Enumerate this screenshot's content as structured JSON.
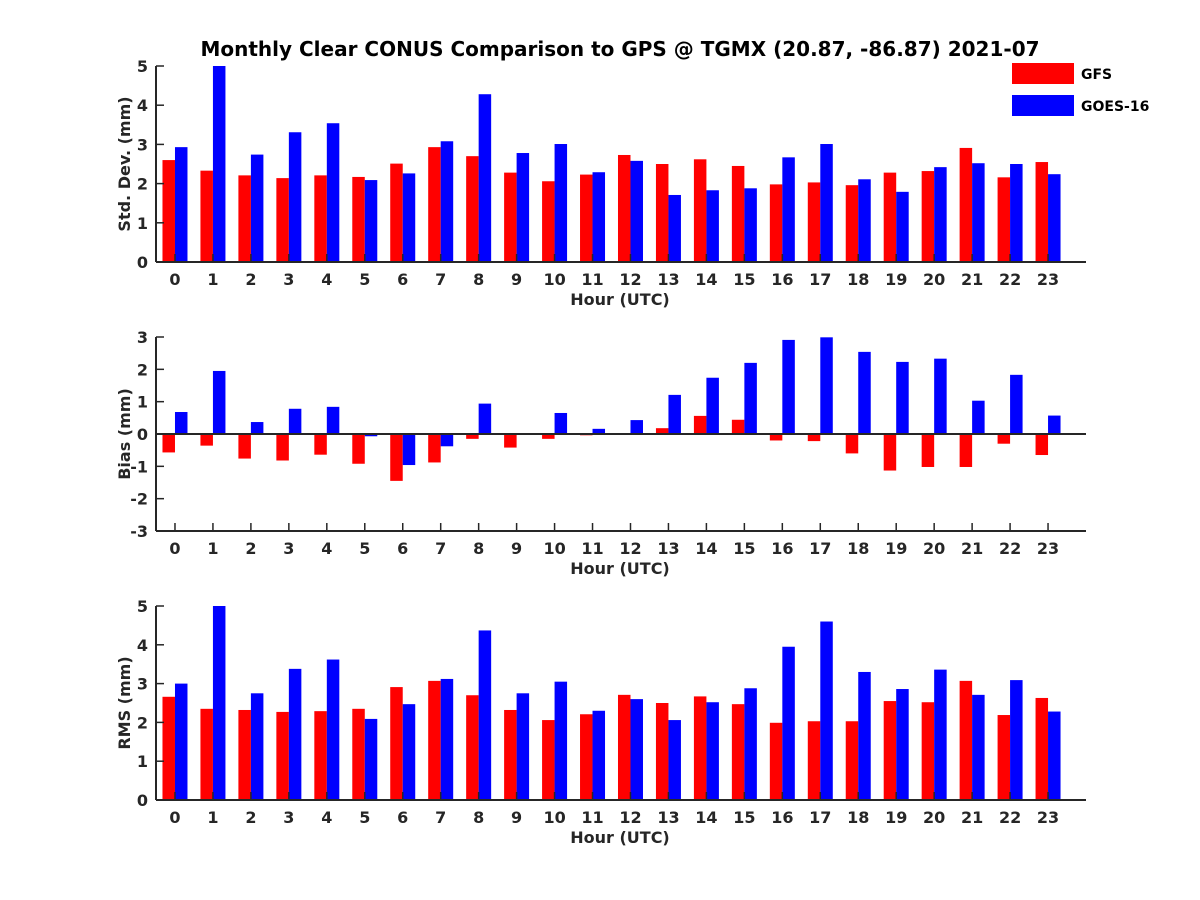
{
  "chart_data": {
    "title": "Monthly Clear CONUS Comparison to GPS @ TGMX (20.87, -86.87) 2021-07",
    "legend": {
      "placement": "top-right",
      "entries": [
        {
          "name": "GFS",
          "color": "#ff0000"
        },
        {
          "name": "GOES-16",
          "color": "#0000ff"
        }
      ]
    },
    "panels": [
      {
        "type": "bar",
        "ylabel": "Std. Dev. (mm)",
        "xlabel": "Hour (UTC)",
        "ylim": [
          0,
          5
        ],
        "yticks": [
          0,
          1,
          2,
          3,
          4,
          5
        ],
        "categories": [
          "0",
          "1",
          "2",
          "3",
          "4",
          "5",
          "6",
          "7",
          "8",
          "9",
          "10",
          "11",
          "12",
          "13",
          "14",
          "15",
          "16",
          "17",
          "18",
          "19",
          "20",
          "21",
          "22",
          "23"
        ],
        "series": [
          {
            "name": "GFS",
            "values": [
              2.6,
              2.33,
              2.21,
              2.14,
              2.21,
              2.17,
              2.51,
              2.93,
              2.7,
              2.28,
              2.06,
              2.23,
              2.73,
              2.5,
              2.62,
              2.45,
              1.98,
              2.03,
              1.96,
              2.28,
              2.32,
              2.91,
              2.16,
              2.55
            ]
          },
          {
            "name": "GOES-16",
            "values": [
              2.93,
              5.0,
              2.74,
              3.31,
              3.54,
              2.09,
              2.26,
              3.08,
              4.28,
              2.78,
              3.01,
              2.29,
              2.58,
              1.71,
              1.83,
              1.88,
              2.67,
              3.01,
              2.11,
              1.79,
              2.42,
              2.52,
              2.5,
              2.24
            ]
          }
        ]
      },
      {
        "type": "bar",
        "ylabel": "Bias (mm)",
        "xlabel": "Hour (UTC)",
        "ylim": [
          -3,
          3
        ],
        "yticks": [
          -3,
          -2,
          -1,
          0,
          1,
          2,
          3
        ],
        "categories": [
          "0",
          "1",
          "2",
          "3",
          "4",
          "5",
          "6",
          "7",
          "8",
          "9",
          "10",
          "11",
          "12",
          "13",
          "14",
          "15",
          "16",
          "17",
          "18",
          "19",
          "20",
          "21",
          "22",
          "23"
        ],
        "series": [
          {
            "name": "GFS",
            "values": [
              -0.57,
              -0.36,
              -0.76,
              -0.82,
              -0.64,
              -0.92,
              -1.45,
              -0.88,
              -0.15,
              -0.42,
              -0.15,
              -0.04,
              0.0,
              0.18,
              0.56,
              0.44,
              -0.2,
              -0.22,
              -0.6,
              -1.13,
              -1.02,
              -1.02,
              -0.3,
              -0.65
            ]
          },
          {
            "name": "GOES-16",
            "values": [
              0.68,
              1.95,
              0.37,
              0.78,
              0.84,
              -0.07,
              -0.96,
              -0.38,
              0.94,
              0.0,
              0.65,
              0.16,
              0.43,
              1.21,
              1.74,
              2.2,
              2.91,
              2.99,
              2.54,
              2.23,
              2.33,
              1.03,
              1.83,
              0.57
            ]
          }
        ]
      },
      {
        "type": "bar",
        "ylabel": "RMS (mm)",
        "xlabel": "Hour (UTC)",
        "ylim": [
          0,
          5
        ],
        "yticks": [
          0,
          1,
          2,
          3,
          4,
          5
        ],
        "categories": [
          "0",
          "1",
          "2",
          "3",
          "4",
          "5",
          "6",
          "7",
          "8",
          "9",
          "10",
          "11",
          "12",
          "13",
          "14",
          "15",
          "16",
          "17",
          "18",
          "19",
          "20",
          "21",
          "22",
          "23"
        ],
        "series": [
          {
            "name": "GFS",
            "values": [
              2.66,
              2.35,
              2.32,
              2.27,
              2.29,
              2.35,
              2.91,
              3.07,
              2.7,
              2.32,
              2.06,
              2.21,
              2.71,
              2.5,
              2.67,
              2.47,
              1.99,
              2.03,
              2.03,
              2.55,
              2.52,
              3.07,
              2.19,
              2.63
            ]
          },
          {
            "name": "GOES-16",
            "values": [
              3.0,
              5.0,
              2.75,
              3.38,
              3.62,
              2.09,
              2.47,
              3.12,
              4.37,
              2.75,
              3.05,
              2.3,
              2.6,
              2.06,
              2.52,
              2.88,
              3.95,
              4.6,
              3.3,
              2.86,
              3.36,
              2.71,
              3.09,
              2.28
            ]
          }
        ]
      }
    ]
  }
}
